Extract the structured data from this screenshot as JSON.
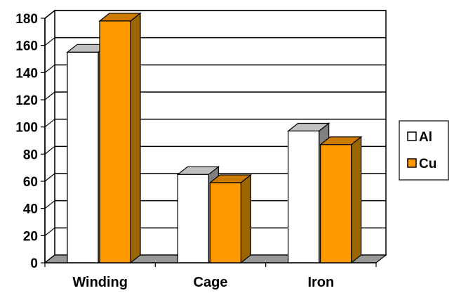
{
  "chart_data": {
    "type": "bar",
    "style": "3d-clustered-column",
    "categories": [
      "Winding",
      "Cage",
      "Iron"
    ],
    "series": [
      {
        "name": "Al",
        "values": [
          155,
          65,
          97
        ],
        "color": "#ffffff"
      },
      {
        "name": "Cu",
        "values": [
          178,
          59,
          87
        ],
        "color": "#ff9900"
      }
    ],
    "title": "",
    "xlabel": "",
    "ylabel": "",
    "ylim": [
      0,
      180
    ],
    "yticks": [
      "0",
      "20",
      "40",
      "60",
      "80",
      "100",
      "120",
      "140",
      "160",
      "180"
    ],
    "grid": true,
    "legend": "right",
    "colors": {
      "al_front": "#ffffff",
      "al_side": "#808080",
      "al_top": "#c0c0c0",
      "cu_front": "#ff9900",
      "cu_side": "#996600",
      "cu_top": "#cc7a00",
      "floor": "#999999",
      "axis": "#000000"
    }
  }
}
